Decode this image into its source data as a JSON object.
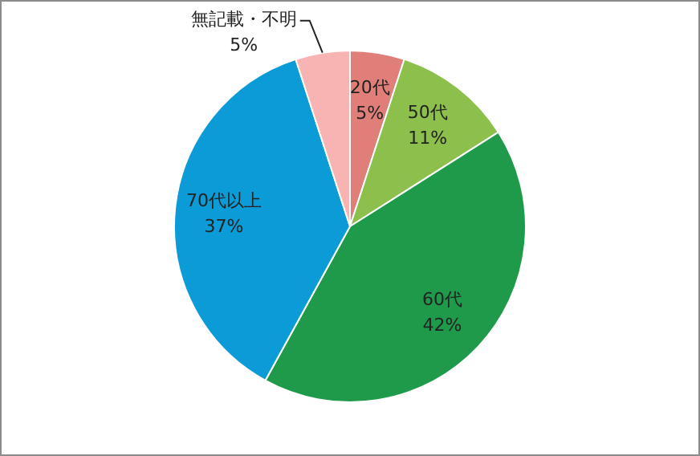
{
  "chart_data": {
    "type": "pie",
    "categories": [
      "20代",
      "50代",
      "60代",
      "70代以上",
      "無記載・不明"
    ],
    "values": [
      5,
      11,
      42,
      37,
      5
    ],
    "value_labels": [
      "5%",
      "11%",
      "42%",
      "37%",
      "5%"
    ],
    "colors": [
      "#e07f7a",
      "#8cbf4b",
      "#1f9a4b",
      "#0b9bd7",
      "#f8b3b3"
    ],
    "legend": false
  }
}
